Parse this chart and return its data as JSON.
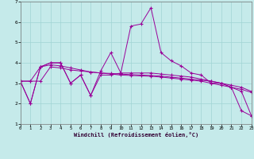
{
  "xlabel": "Windchill (Refroidissement éolien,°C)",
  "background_color": "#c5eaea",
  "grid_color": "#a0d4d4",
  "line_color": "#990099",
  "x": [
    0,
    1,
    2,
    3,
    4,
    5,
    6,
    7,
    8,
    9,
    10,
    11,
    12,
    13,
    14,
    15,
    16,
    17,
    18,
    19,
    20,
    21,
    22,
    23
  ],
  "series1": [
    3.1,
    2.0,
    3.8,
    4.0,
    4.0,
    3.0,
    3.4,
    2.4,
    3.6,
    4.5,
    3.5,
    5.8,
    5.9,
    6.7,
    4.5,
    4.1,
    3.85,
    3.5,
    3.4,
    3.0,
    3.0,
    2.8,
    1.65,
    1.4
  ],
  "series2": [
    3.1,
    2.0,
    3.8,
    4.0,
    4.0,
    3.0,
    3.4,
    2.4,
    3.4,
    3.4,
    3.5,
    3.5,
    3.5,
    3.5,
    3.45,
    3.4,
    3.35,
    3.3,
    3.2,
    3.1,
    3.0,
    2.8,
    2.6,
    1.4
  ],
  "series3": [
    3.1,
    3.1,
    3.8,
    3.9,
    3.85,
    3.75,
    3.65,
    3.55,
    3.5,
    3.45,
    3.4,
    3.38,
    3.36,
    3.34,
    3.3,
    3.25,
    3.2,
    3.15,
    3.1,
    3.0,
    2.9,
    2.8,
    2.7,
    2.55
  ],
  "series4": [
    3.1,
    3.1,
    3.1,
    3.8,
    3.75,
    3.65,
    3.6,
    3.55,
    3.5,
    3.48,
    3.45,
    3.42,
    3.4,
    3.38,
    3.35,
    3.3,
    3.25,
    3.2,
    3.15,
    3.1,
    3.0,
    2.9,
    2.8,
    2.6
  ],
  "ylim": [
    1,
    7
  ],
  "xlim": [
    0,
    23
  ],
  "yticks": [
    1,
    2,
    3,
    4,
    5,
    6,
    7
  ]
}
